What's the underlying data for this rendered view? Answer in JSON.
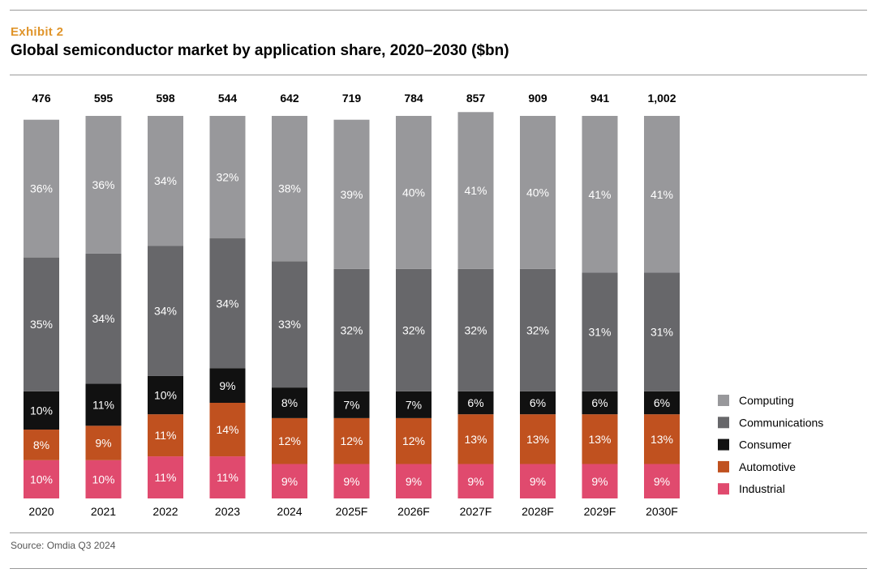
{
  "header": {
    "exhibit": "Exhibit  2",
    "title": "Global semiconductor market by application share, 2020–2030 ($bn)"
  },
  "footer": {
    "source": "Source: Omdia Q3 2024"
  },
  "colors": {
    "Computing": "#98989b",
    "Communications": "#67676a",
    "Consumer": "#111111",
    "Automotive": "#c0511f",
    "Industrial": "#e04a6e",
    "exhibit_accent": "#e0952b"
  },
  "chart_data": {
    "type": "bar",
    "stacked": true,
    "normalized": true,
    "title": "Global semiconductor market by application share, 2020–2030 ($bn)",
    "xlabel": "",
    "ylabel": "",
    "ylim": [
      0,
      100
    ],
    "grid": false,
    "legend_position": "right",
    "categories": [
      "2020",
      "2021",
      "2022",
      "2023",
      "2024",
      "2025F",
      "2026F",
      "2027F",
      "2028F",
      "2029F",
      "2030F"
    ],
    "totals": [
      "476",
      "595",
      "598",
      "544",
      "642",
      "719",
      "784",
      "857",
      "909",
      "941",
      "1,002"
    ],
    "series": [
      {
        "name": "Industrial",
        "values": [
          10,
          10,
          11,
          11,
          9,
          9,
          9,
          9,
          9,
          9,
          9
        ]
      },
      {
        "name": "Automotive",
        "values": [
          8,
          9,
          11,
          14,
          12,
          12,
          12,
          13,
          13,
          13,
          13
        ]
      },
      {
        "name": "Consumer",
        "values": [
          10,
          11,
          10,
          9,
          8,
          7,
          7,
          6,
          6,
          6,
          6
        ]
      },
      {
        "name": "Communications",
        "values": [
          35,
          34,
          34,
          34,
          33,
          32,
          32,
          32,
          32,
          31,
          31
        ]
      },
      {
        "name": "Computing",
        "values": [
          36,
          36,
          34,
          32,
          38,
          39,
          40,
          41,
          40,
          41,
          41
        ]
      }
    ],
    "legend": [
      "Computing",
      "Communications",
      "Consumer",
      "Automotive",
      "Industrial"
    ]
  }
}
